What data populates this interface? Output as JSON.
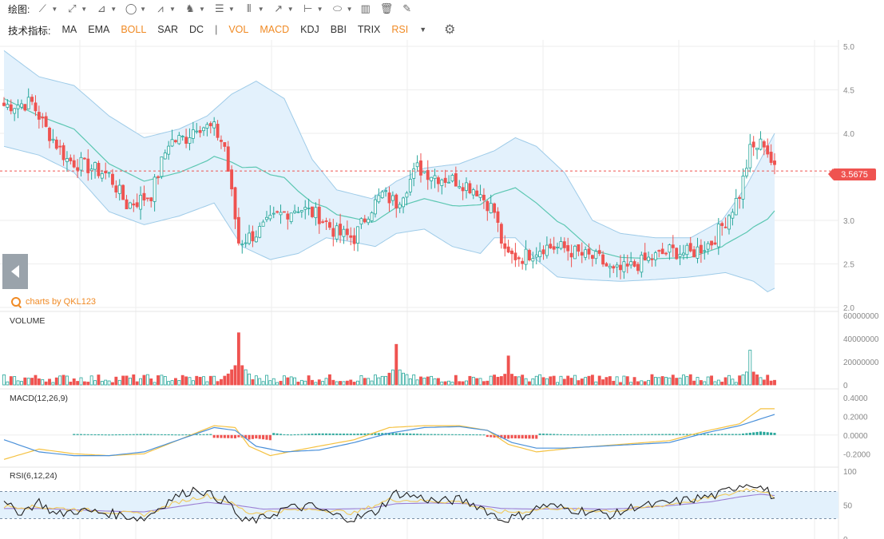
{
  "toolbar": {
    "label": "绘图:",
    "tools": [
      {
        "icon": "line-tool-icon",
        "glyph": "⟋"
      },
      {
        "icon": "multi-line-tool-icon",
        "glyph": "⤢"
      },
      {
        "icon": "polyline-tool-icon",
        "glyph": "⊿"
      },
      {
        "icon": "ellipse-tool-icon",
        "glyph": "◯"
      },
      {
        "icon": "wave-tool-icon",
        "glyph": "⩘"
      },
      {
        "icon": "pattern-tool-icon",
        "glyph": "♞"
      },
      {
        "icon": "fibonacci-tool-icon",
        "glyph": "☰"
      },
      {
        "icon": "grid-tool-icon",
        "glyph": "⦀"
      },
      {
        "icon": "arrow-tool-icon",
        "glyph": "↗"
      },
      {
        "icon": "measure-tool-icon",
        "glyph": "⊢"
      },
      {
        "icon": "shape-tool-icon",
        "glyph": "⬭"
      }
    ],
    "extra": [
      {
        "icon": "chart-type-icon",
        "glyph": "▥"
      },
      {
        "icon": "trash-icon",
        "glyph": "🗑"
      },
      {
        "icon": "brush-icon",
        "glyph": "✎"
      }
    ]
  },
  "indicators": {
    "label": "技术指标:",
    "main": [
      {
        "label": "MA",
        "active": false
      },
      {
        "label": "EMA",
        "active": false
      },
      {
        "label": "BOLL",
        "active": true
      },
      {
        "label": "SAR",
        "active": false
      },
      {
        "label": "DC",
        "active": false
      }
    ],
    "separator": "|",
    "sub": [
      {
        "label": "VOL",
        "active": true
      },
      {
        "label": "MACD",
        "active": true
      },
      {
        "label": "KDJ",
        "active": false
      },
      {
        "label": "BBI",
        "active": false
      },
      {
        "label": "TRIX",
        "active": false
      },
      {
        "label": "RSI",
        "active": true
      }
    ],
    "dropdown_icon": "caret-down-icon",
    "settings_icon": "gear-icon"
  },
  "watermark": "charts by QKL123",
  "colors": {
    "up": "#26a69a",
    "down": "#ef5350",
    "band_fill": "#e3f1fc",
    "band_line": "#9ecbe8",
    "boll_mid": "#5cc7b2",
    "dif": "#4a90d9",
    "dea": "#f5c242",
    "rsi6": "#222222",
    "rsi12": "#f0c95a",
    "rsi24": "#9b7fd4",
    "grid": "#eeeeee"
  },
  "chart_data": [
    {
      "type": "candlestick",
      "title": "",
      "overlay": "BOLL",
      "ylim": [
        2.0,
        5.0
      ],
      "yticks": [
        "5.0",
        "4.5",
        "4.0",
        "3.5",
        "3.0",
        "2.5",
        "2.0"
      ],
      "last_price": "3.5675",
      "close_keypoints": [
        [
          0,
          4.32
        ],
        [
          8,
          4.35
        ],
        [
          12,
          4.05
        ],
        [
          18,
          3.7
        ],
        [
          25,
          3.6
        ],
        [
          30,
          3.52
        ],
        [
          35,
          3.18
        ],
        [
          38,
          3.22
        ],
        [
          42,
          3.3
        ],
        [
          47,
          3.9
        ],
        [
          52,
          3.95
        ],
        [
          55,
          4.1
        ],
        [
          60,
          4.05
        ],
        [
          63,
          3.85
        ],
        [
          65,
          3.3
        ],
        [
          67,
          2.75
        ],
        [
          72,
          2.85
        ],
        [
          78,
          3.05
        ],
        [
          84,
          3.15
        ],
        [
          90,
          3.05
        ],
        [
          95,
          2.85
        ],
        [
          100,
          2.8
        ],
        [
          104,
          3.1
        ],
        [
          108,
          3.3
        ],
        [
          112,
          3.2
        ],
        [
          118,
          3.6
        ],
        [
          124,
          3.5
        ],
        [
          130,
          3.45
        ],
        [
          135,
          3.35
        ],
        [
          140,
          3.1
        ],
        [
          143,
          2.6
        ],
        [
          148,
          2.58
        ],
        [
          154,
          2.7
        ],
        [
          160,
          2.68
        ],
        [
          165,
          2.6
        ],
        [
          170,
          2.55
        ],
        [
          174,
          2.4
        ],
        [
          178,
          2.45
        ],
        [
          184,
          2.55
        ],
        [
          190,
          2.65
        ],
        [
          196,
          2.62
        ],
        [
          202,
          2.75
        ],
        [
          206,
          3.0
        ],
        [
          210,
          3.3
        ],
        [
          213,
          3.8
        ],
        [
          217,
          3.9
        ],
        [
          220,
          3.57
        ]
      ],
      "boll_upper_keypoints": [
        [
          0,
          4.95
        ],
        [
          10,
          4.65
        ],
        [
          20,
          4.55
        ],
        [
          30,
          4.2
        ],
        [
          40,
          3.95
        ],
        [
          50,
          4.05
        ],
        [
          58,
          4.2
        ],
        [
          65,
          4.45
        ],
        [
          72,
          4.6
        ],
        [
          80,
          4.4
        ],
        [
          88,
          3.7
        ],
        [
          95,
          3.35
        ],
        [
          105,
          3.25
        ],
        [
          112,
          3.45
        ],
        [
          120,
          3.6
        ],
        [
          130,
          3.65
        ],
        [
          140,
          3.8
        ],
        [
          146,
          3.95
        ],
        [
          152,
          3.85
        ],
        [
          160,
          3.55
        ],
        [
          168,
          3.0
        ],
        [
          176,
          2.85
        ],
        [
          186,
          2.8
        ],
        [
          196,
          2.8
        ],
        [
          205,
          3.0
        ],
        [
          212,
          3.4
        ],
        [
          220,
          4.0
        ]
      ],
      "boll_lower_keypoints": [
        [
          0,
          3.85
        ],
        [
          10,
          3.75
        ],
        [
          20,
          3.55
        ],
        [
          30,
          3.1
        ],
        [
          40,
          2.95
        ],
        [
          50,
          3.05
        ],
        [
          60,
          3.2
        ],
        [
          68,
          2.7
        ],
        [
          76,
          2.55
        ],
        [
          84,
          2.62
        ],
        [
          92,
          2.8
        ],
        [
          100,
          2.75
        ],
        [
          106,
          2.7
        ],
        [
          112,
          2.85
        ],
        [
          120,
          2.9
        ],
        [
          128,
          2.7
        ],
        [
          136,
          2.62
        ],
        [
          140,
          2.8
        ],
        [
          146,
          2.8
        ],
        [
          152,
          2.55
        ],
        [
          158,
          2.35
        ],
        [
          166,
          2.32
        ],
        [
          176,
          2.3
        ],
        [
          186,
          2.32
        ],
        [
          196,
          2.35
        ],
        [
          206,
          2.4
        ],
        [
          214,
          2.3
        ],
        [
          218,
          2.18
        ],
        [
          220,
          2.22
        ]
      ]
    },
    {
      "type": "bar",
      "title": "VOLUME",
      "ylim": [
        0,
        60000000
      ],
      "yticks": [
        "60000000",
        "40000000",
        "20000000",
        "0"
      ],
      "spikes": [
        [
          67,
          45000000
        ],
        [
          112,
          35000000
        ],
        [
          144,
          25000000
        ],
        [
          213,
          30000000
        ]
      ],
      "baseline": 5000000
    },
    {
      "type": "line",
      "title": "MACD(12,26,9)",
      "ylim": [
        -0.3,
        0.45
      ],
      "yticks": [
        "0.4000",
        "0.2000",
        "0.0000",
        "-0.2000"
      ],
      "dif_keypoints": [
        [
          0,
          -0.05
        ],
        [
          10,
          -0.18
        ],
        [
          20,
          -0.22
        ],
        [
          30,
          -0.22
        ],
        [
          40,
          -0.18
        ],
        [
          50,
          -0.05
        ],
        [
          60,
          0.08
        ],
        [
          66,
          0.05
        ],
        [
          72,
          -0.12
        ],
        [
          80,
          -0.18
        ],
        [
          90,
          -0.16
        ],
        [
          100,
          -0.08
        ],
        [
          110,
          0.02
        ],
        [
          120,
          0.08
        ],
        [
          130,
          0.09
        ],
        [
          138,
          0.05
        ],
        [
          145,
          -0.08
        ],
        [
          152,
          -0.14
        ],
        [
          160,
          -0.14
        ],
        [
          170,
          -0.12
        ],
        [
          180,
          -0.1
        ],
        [
          190,
          -0.08
        ],
        [
          200,
          0.02
        ],
        [
          210,
          0.1
        ],
        [
          220,
          0.22
        ]
      ],
      "dea_keypoints": [
        [
          0,
          -0.26
        ],
        [
          10,
          -0.15
        ],
        [
          20,
          -0.2
        ],
        [
          30,
          -0.22
        ],
        [
          40,
          -0.2
        ],
        [
          50,
          -0.05
        ],
        [
          60,
          0.1
        ],
        [
          66,
          0.08
        ],
        [
          70,
          -0.12
        ],
        [
          76,
          -0.22
        ],
        [
          84,
          -0.16
        ],
        [
          100,
          -0.05
        ],
        [
          110,
          0.08
        ],
        [
          120,
          0.1
        ],
        [
          130,
          0.1
        ],
        [
          138,
          0.05
        ],
        [
          144,
          -0.1
        ],
        [
          152,
          -0.18
        ],
        [
          162,
          -0.14
        ],
        [
          176,
          -0.1
        ],
        [
          190,
          -0.06
        ],
        [
          200,
          0.04
        ],
        [
          210,
          0.12
        ],
        [
          216,
          0.28
        ],
        [
          220,
          0.28
        ]
      ],
      "histogram": "derived"
    },
    {
      "type": "line",
      "title": "RSI(6,12,24)",
      "ylim": [
        0,
        100
      ],
      "yticks": [
        "100",
        "50",
        "0"
      ],
      "band": [
        30,
        70
      ],
      "rsi6_keypoints": [
        [
          0,
          50
        ],
        [
          5,
          40
        ],
        [
          10,
          55
        ],
        [
          15,
          35
        ],
        [
          20,
          42
        ],
        [
          30,
          38
        ],
        [
          40,
          30
        ],
        [
          48,
          60
        ],
        [
          55,
          75
        ],
        [
          60,
          62
        ],
        [
          64,
          55
        ],
        [
          68,
          25
        ],
        [
          74,
          30
        ],
        [
          80,
          45
        ],
        [
          88,
          48
        ],
        [
          94,
          35
        ],
        [
          100,
          30
        ],
        [
          106,
          40
        ],
        [
          112,
          68
        ],
        [
          118,
          62
        ],
        [
          124,
          55
        ],
        [
          130,
          58
        ],
        [
          136,
          48
        ],
        [
          142,
          28
        ],
        [
          148,
          35
        ],
        [
          154,
          50
        ],
        [
          160,
          45
        ],
        [
          168,
          40
        ],
        [
          174,
          35
        ],
        [
          180,
          48
        ],
        [
          186,
          50
        ],
        [
          192,
          55
        ],
        [
          198,
          60
        ],
        [
          204,
          65
        ],
        [
          210,
          80
        ],
        [
          214,
          82
        ],
        [
          218,
          70
        ],
        [
          220,
          60
        ]
      ],
      "rsi12_keypoints": [
        [
          0,
          48
        ],
        [
          10,
          47
        ],
        [
          20,
          44
        ],
        [
          30,
          40
        ],
        [
          40,
          36
        ],
        [
          50,
          55
        ],
        [
          58,
          64
        ],
        [
          64,
          55
        ],
        [
          70,
          38
        ],
        [
          80,
          42
        ],
        [
          90,
          44
        ],
        [
          100,
          38
        ],
        [
          110,
          58
        ],
        [
          120,
          56
        ],
        [
          130,
          55
        ],
        [
          140,
          40
        ],
        [
          148,
          40
        ],
        [
          156,
          46
        ],
        [
          166,
          42
        ],
        [
          176,
          42
        ],
        [
          186,
          48
        ],
        [
          196,
          56
        ],
        [
          206,
          64
        ],
        [
          212,
          74
        ],
        [
          218,
          70
        ],
        [
          220,
          62
        ]
      ],
      "rsi24_keypoints": [
        [
          0,
          45
        ],
        [
          10,
          45
        ],
        [
          20,
          43
        ],
        [
          30,
          41
        ],
        [
          40,
          40
        ],
        [
          50,
          48
        ],
        [
          58,
          54
        ],
        [
          66,
          50
        ],
        [
          74,
          44
        ],
        [
          84,
          45
        ],
        [
          94,
          44
        ],
        [
          104,
          45
        ],
        [
          112,
          52
        ],
        [
          122,
          53
        ],
        [
          132,
          52
        ],
        [
          142,
          45
        ],
        [
          152,
          44
        ],
        [
          162,
          45
        ],
        [
          172,
          44
        ],
        [
          182,
          46
        ],
        [
          192,
          50
        ],
        [
          202,
          55
        ],
        [
          210,
          62
        ],
        [
          216,
          66
        ],
        [
          220,
          64
        ]
      ]
    }
  ]
}
